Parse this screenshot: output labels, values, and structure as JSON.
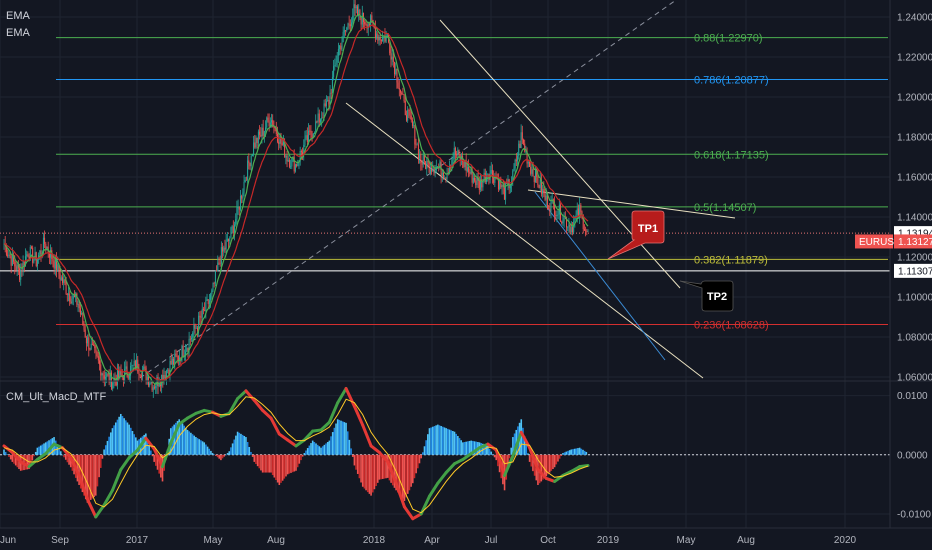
{
  "legend": {
    "main": [
      "EMA",
      "EMA"
    ],
    "indicator": "CM_Ult_MacD_MTF"
  },
  "colors": {
    "background": "#131722",
    "grid": "#1f2431",
    "axis_text": "#b2b5be",
    "candle_up": "#26a69a",
    "candle_down": "#ef5350",
    "ema_fast": "#4caf50",
    "ema_slow": "#c62828",
    "trend_lines": "#e8e0c0",
    "channel_blue": "#3b8bd4",
    "diag_dashed": "#8a8f9c",
    "fib_088": "#4caf50",
    "fib_0786": "#2196f3",
    "fib_0618": "#4caf50",
    "fib_05": "#4caf50",
    "fib_0382": "#bdbd3a",
    "fib_0236": "#d32f2f",
    "price_tag_bg": "#ef5350",
    "tp1_bg": "#b71c1c",
    "tp2_bg": "#000000"
  },
  "chart_data": [
    {
      "type": "candlestick",
      "symbol": "EURUSD",
      "legend": [
        "EMA",
        "EMA"
      ],
      "x_ticks": [
        "Jun",
        "Sep",
        "2017",
        "May",
        "Aug",
        "2018",
        "Apr",
        "Jul",
        "Oct",
        "2019",
        "May",
        "Aug",
        "2020"
      ],
      "y_ticks": [
        "1.24000",
        "1.22000",
        "1.20000",
        "1.18000",
        "1.16000",
        "1.14000",
        "1.12000",
        "1.10000",
        "1.08000",
        "1.06000"
      ],
      "ylim": [
        1.0585,
        1.2485
      ],
      "last_price": "1.13127",
      "last_price_label": "EURUSD",
      "price_levels": [
        "1.13194",
        "1.11307"
      ],
      "fib_levels": [
        {
          "ratio": "0.88",
          "value": "1.22970",
          "price": 1.2297
        },
        {
          "ratio": "0.786",
          "value": "1.20877",
          "price": 1.20877
        },
        {
          "ratio": "0.618",
          "value": "1.17135",
          "price": 1.17135
        },
        {
          "ratio": "0.5",
          "value": "1.14507",
          "price": 1.14507
        },
        {
          "ratio": "0.382",
          "value": "1.11879",
          "price": 1.11879
        },
        {
          "ratio": "0.236",
          "value": "1.08628",
          "price": 1.08628
        }
      ],
      "targets": [
        "TP1",
        "TP2"
      ],
      "close_series": [
        1.128,
        1.119,
        1.112,
        1.123,
        1.118,
        1.127,
        1.119,
        1.109,
        1.101,
        1.097,
        1.079,
        1.071,
        1.062,
        1.058,
        1.06,
        1.063,
        1.066,
        1.062,
        1.056,
        1.06,
        1.066,
        1.07,
        1.076,
        1.084,
        1.092,
        1.101,
        1.12,
        1.128,
        1.141,
        1.16,
        1.176,
        1.182,
        1.19,
        1.18,
        1.17,
        1.166,
        1.175,
        1.183,
        1.19,
        1.198,
        1.222,
        1.233,
        1.243,
        1.239,
        1.237,
        1.23,
        1.23,
        1.213,
        1.195,
        1.185,
        1.168,
        1.166,
        1.165,
        1.162,
        1.172,
        1.168,
        1.161,
        1.156,
        1.163,
        1.16,
        1.152,
        1.16,
        1.18,
        1.166,
        1.158,
        1.148,
        1.145,
        1.14,
        1.135,
        1.143,
        1.131
      ]
    },
    {
      "type": "bar",
      "name": "CM_Ult_MacD_MTF",
      "y_ticks": [
        "0.0100",
        "0.0000",
        "-0.0100"
      ],
      "ylim": [
        -0.0122,
        0.0123
      ],
      "macd_series": [
        0.0015,
        0.0004,
        -0.0012,
        -0.002,
        -0.0008,
        0.0002,
        0.0018,
        0.0012,
        -0.0005,
        -0.0035,
        -0.0075,
        -0.0105,
        -0.0085,
        -0.006,
        -0.0025,
        -0.0005,
        0.0008,
        0.0028,
        0.001,
        -0.002,
        0.002,
        0.0052,
        0.0062,
        0.007,
        0.0075,
        0.0072,
        0.0065,
        0.007,
        0.0095,
        0.0108,
        0.0092,
        0.0075,
        0.0062,
        0.0035,
        0.0025,
        0.0015,
        0.0025,
        0.004,
        0.0042,
        0.0055,
        0.0088,
        0.0112,
        0.0082,
        0.005,
        0.0015,
        0.0004,
        -0.0012,
        -0.0048,
        -0.0088,
        -0.0108,
        -0.01,
        -0.007,
        -0.0048,
        -0.003,
        -0.0015,
        -0.0008,
        0.0002,
        0.0012,
        0.0018,
        0.0008,
        -0.0035,
        -0.0002,
        0.0038,
        0.0012,
        -0.0025,
        -0.004,
        -0.0045,
        -0.0035,
        -0.0028,
        -0.002,
        -0.0018
      ],
      "signal_series": [
        0.0012,
        0.0008,
        -0.0003,
        -0.0012,
        -0.0012,
        -0.0005,
        0.0008,
        0.0012,
        0.0002,
        -0.0018,
        -0.0048,
        -0.0082,
        -0.0088,
        -0.0075,
        -0.0048,
        -0.0022,
        0.0,
        0.0016,
        0.0014,
        -0.0005,
        0.0005,
        0.0032,
        0.0048,
        0.006,
        0.0068,
        0.0071,
        0.0068,
        0.0068,
        0.0082,
        0.0098,
        0.0096,
        0.0085,
        0.0072,
        0.0052,
        0.0036,
        0.0024,
        0.0024,
        0.0032,
        0.0038,
        0.0047,
        0.0068,
        0.0094,
        0.0088,
        0.0068,
        0.0038,
        0.0018,
        0.0001,
        -0.0028,
        -0.0062,
        -0.0092,
        -0.0098,
        -0.0085,
        -0.0065,
        -0.0045,
        -0.0028,
        -0.0015,
        -0.0006,
        0.0005,
        0.0013,
        0.0011,
        -0.0015,
        -0.0012,
        0.0018,
        0.0016,
        -0.0008,
        -0.0028,
        -0.0038,
        -0.0036,
        -0.0031,
        -0.0024,
        -0.0019
      ]
    }
  ]
}
